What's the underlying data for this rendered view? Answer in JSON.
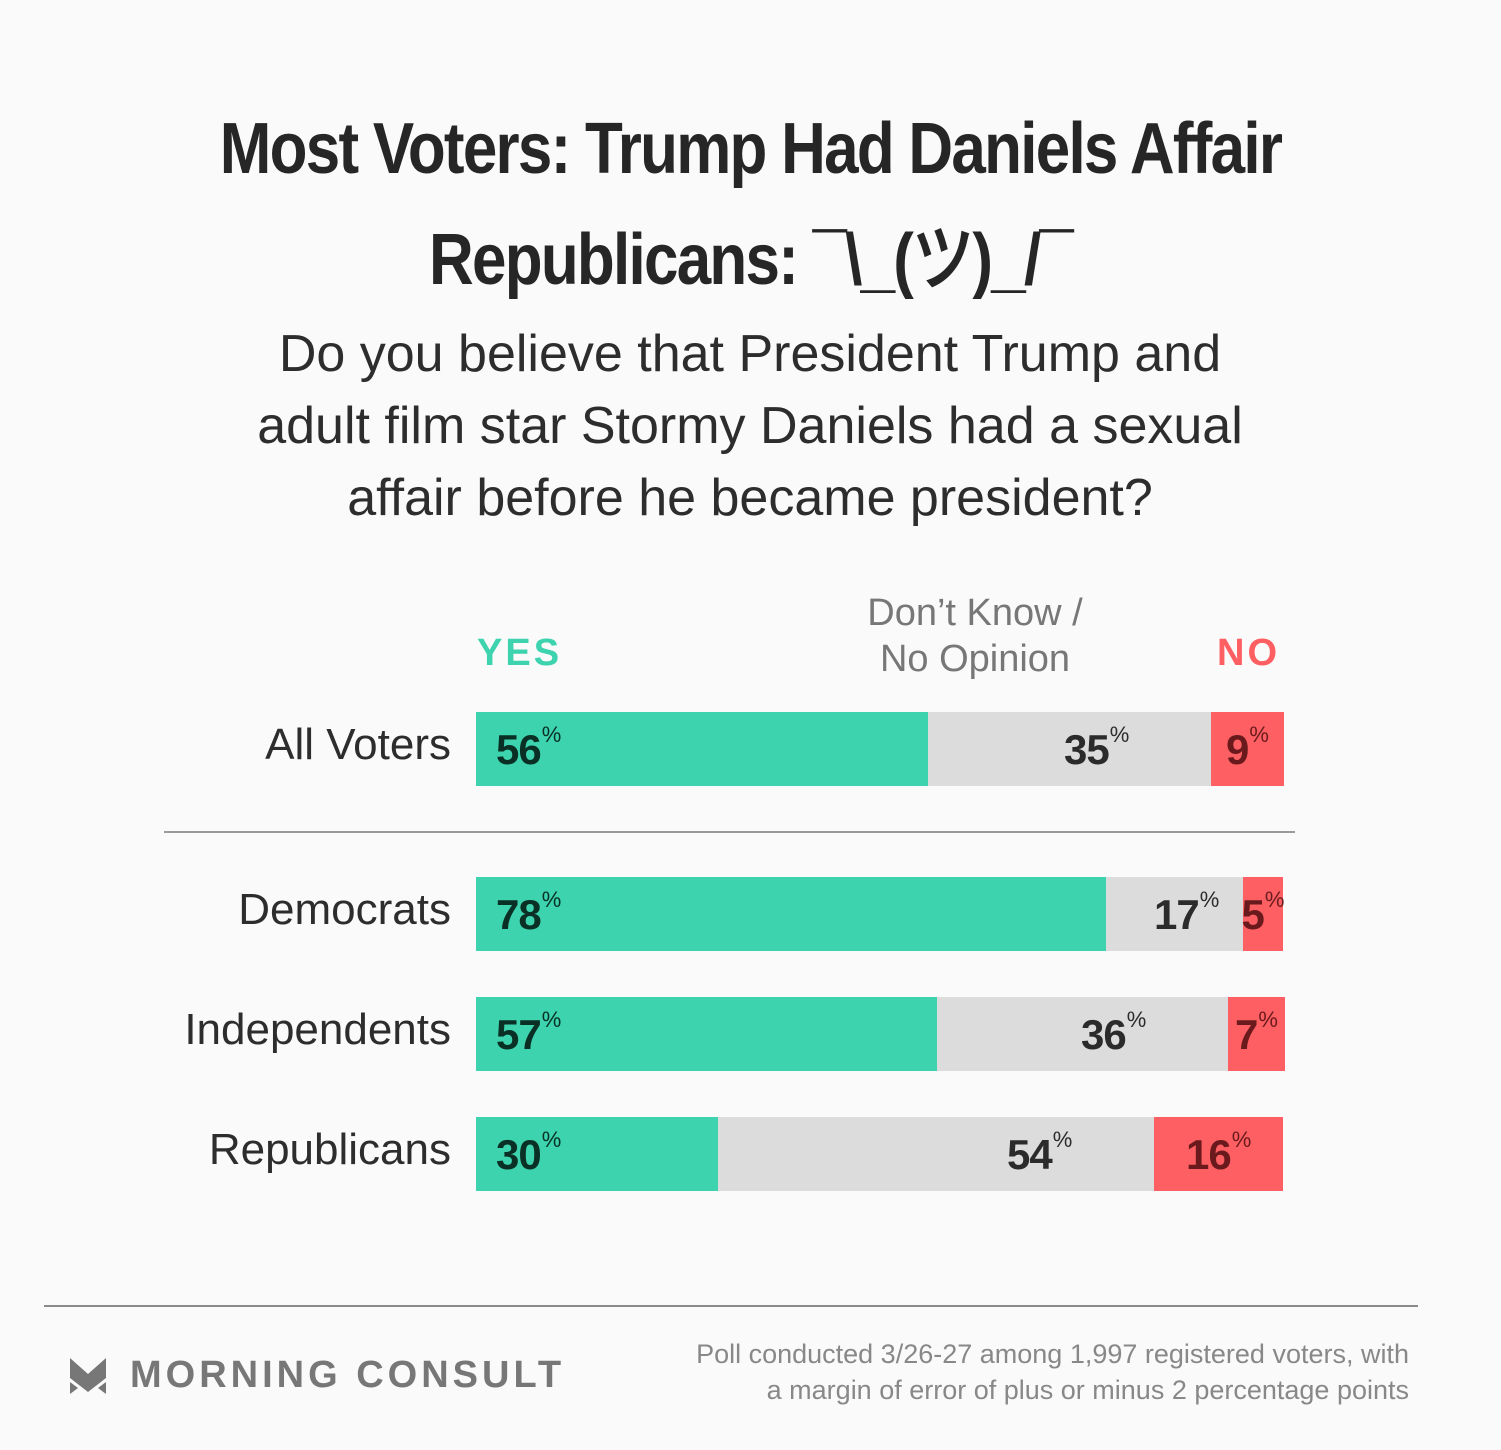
{
  "title_line1": "Most Voters: Trump Had Daniels Affair",
  "title_line2": "Republicans: ¯\\_(ツ)_/¯",
  "question_lines": [
    "Do you believe that President Trump and",
    "adult film star Stormy Daniels had a sexual",
    "affair before he became president?"
  ],
  "legend": {
    "yes": "YES",
    "dk_line1": "Don’t Know /",
    "dk_line2": "No Opinion",
    "no": "NO"
  },
  "colors": {
    "yes": "#3dd3ae",
    "dk": "#dcdcdc",
    "no": "#fe5f63"
  },
  "chart_data": {
    "type": "bar",
    "orientation": "horizontal-stacked-100",
    "title": "Most Voters: Trump Had Daniels Affair / Republicans: ¯\\_(ツ)_/¯",
    "categories": [
      "All Voters",
      "Democrats",
      "Independents",
      "Republicans"
    ],
    "series": [
      {
        "name": "YES",
        "values": [
          56,
          78,
          57,
          30
        ]
      },
      {
        "name": "Don’t Know / No Opinion",
        "values": [
          35,
          17,
          36,
          54
        ]
      },
      {
        "name": "NO",
        "values": [
          9,
          5,
          7,
          16
        ]
      }
    ],
    "unit": "%",
    "xlim": [
      0,
      100
    ],
    "legend": "top"
  },
  "footer": {
    "brand": "MORNING CONSULT",
    "note_line1": "Poll conducted 3/26-27 among 1,997 registered voters, with",
    "note_line2": "a margin of error of plus or minus 2 percentage points"
  }
}
